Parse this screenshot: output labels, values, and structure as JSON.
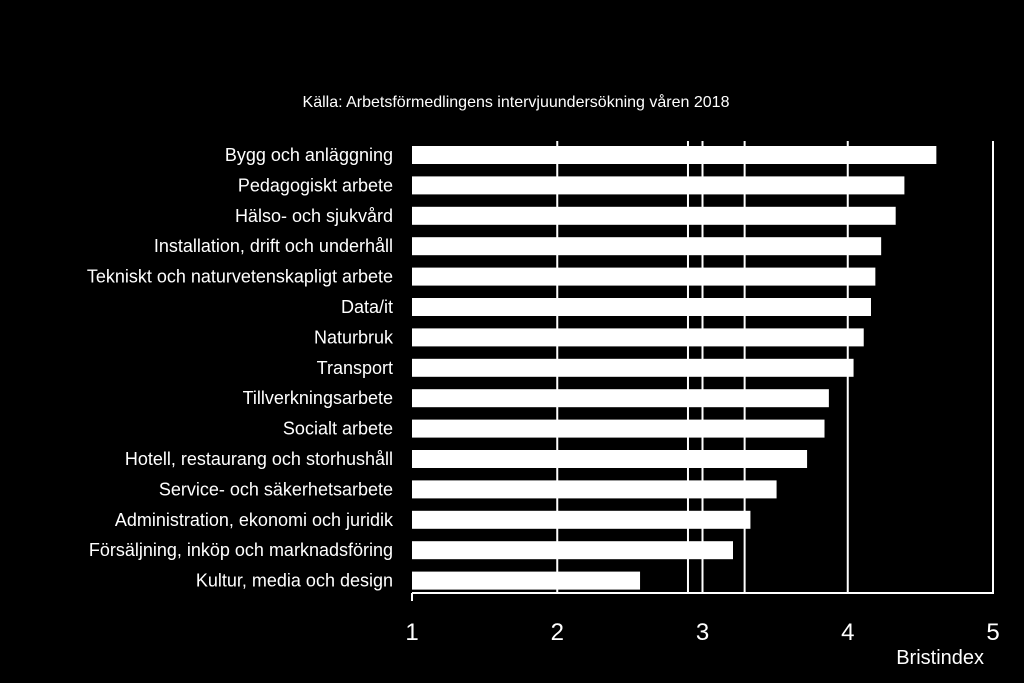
{
  "chart_data": {
    "type": "bar",
    "orientation": "horizontal",
    "subtitle": "Källa: Arbetsförmedlingens intervjuundersökning våren 2018",
    "xlabel": "Bristindex",
    "xlim": [
      1,
      5
    ],
    "xticks": [
      "1",
      "2",
      "3",
      "4",
      "5"
    ],
    "grid": true,
    "background": "#000000",
    "bar_color": "#ffffff",
    "text_color": "#ffffff",
    "categories": [
      "Bygg och anläggning",
      "Pedagogiskt arbete",
      "Hälso- och sjukvård",
      "Installation, drift och underhåll",
      "Tekniskt och naturvetenskapligt arbete",
      "Data/it",
      "Naturbruk",
      "Transport",
      "Tillverkningsarbete",
      "Socialt arbete",
      "Hotell, restaurang och storhushåll",
      "Service- och säkerhetsarbete",
      "Administration, ekonomi och juridik",
      "Försäljning, inköp och marknadsföring",
      "Kultur, media och design"
    ],
    "values": [
      4.61,
      4.39,
      4.33,
      4.23,
      4.19,
      4.16,
      4.11,
      4.04,
      3.87,
      3.84,
      3.72,
      3.51,
      3.33,
      3.21,
      2.57
    ],
    "reference_lines": [
      2.9,
      3.0,
      3.29
    ]
  }
}
